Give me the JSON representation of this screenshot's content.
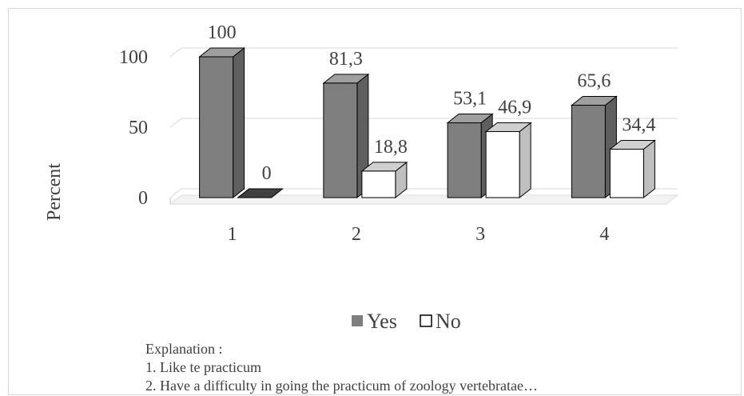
{
  "chart_data": {
    "type": "bar",
    "categories": [
      "1",
      "2",
      "3",
      "4"
    ],
    "series": [
      {
        "name": "Yes",
        "values": [
          100,
          81.3,
          53.1,
          65.6
        ],
        "labels": [
          "100",
          "81,3",
          "53,1",
          "65,6"
        ],
        "color": "#7f7f7f"
      },
      {
        "name": "No",
        "values": [
          0,
          18.8,
          46.9,
          34.4
        ],
        "labels": [
          "0",
          "18,8",
          "46,9",
          "34,4"
        ],
        "color": "#ffffff"
      }
    ],
    "ylabel": "Percent",
    "xlabel": "",
    "yticks": [
      "0",
      "50",
      "100"
    ],
    "ylim": [
      0,
      120
    ],
    "legend_placement": "bottom",
    "grid": true
  },
  "notes": {
    "header": "Explanation :",
    "items": [
      "1. Like te practicum",
      "2. Have a difficulty in going the practicum of zoology vertebratae…"
    ]
  }
}
